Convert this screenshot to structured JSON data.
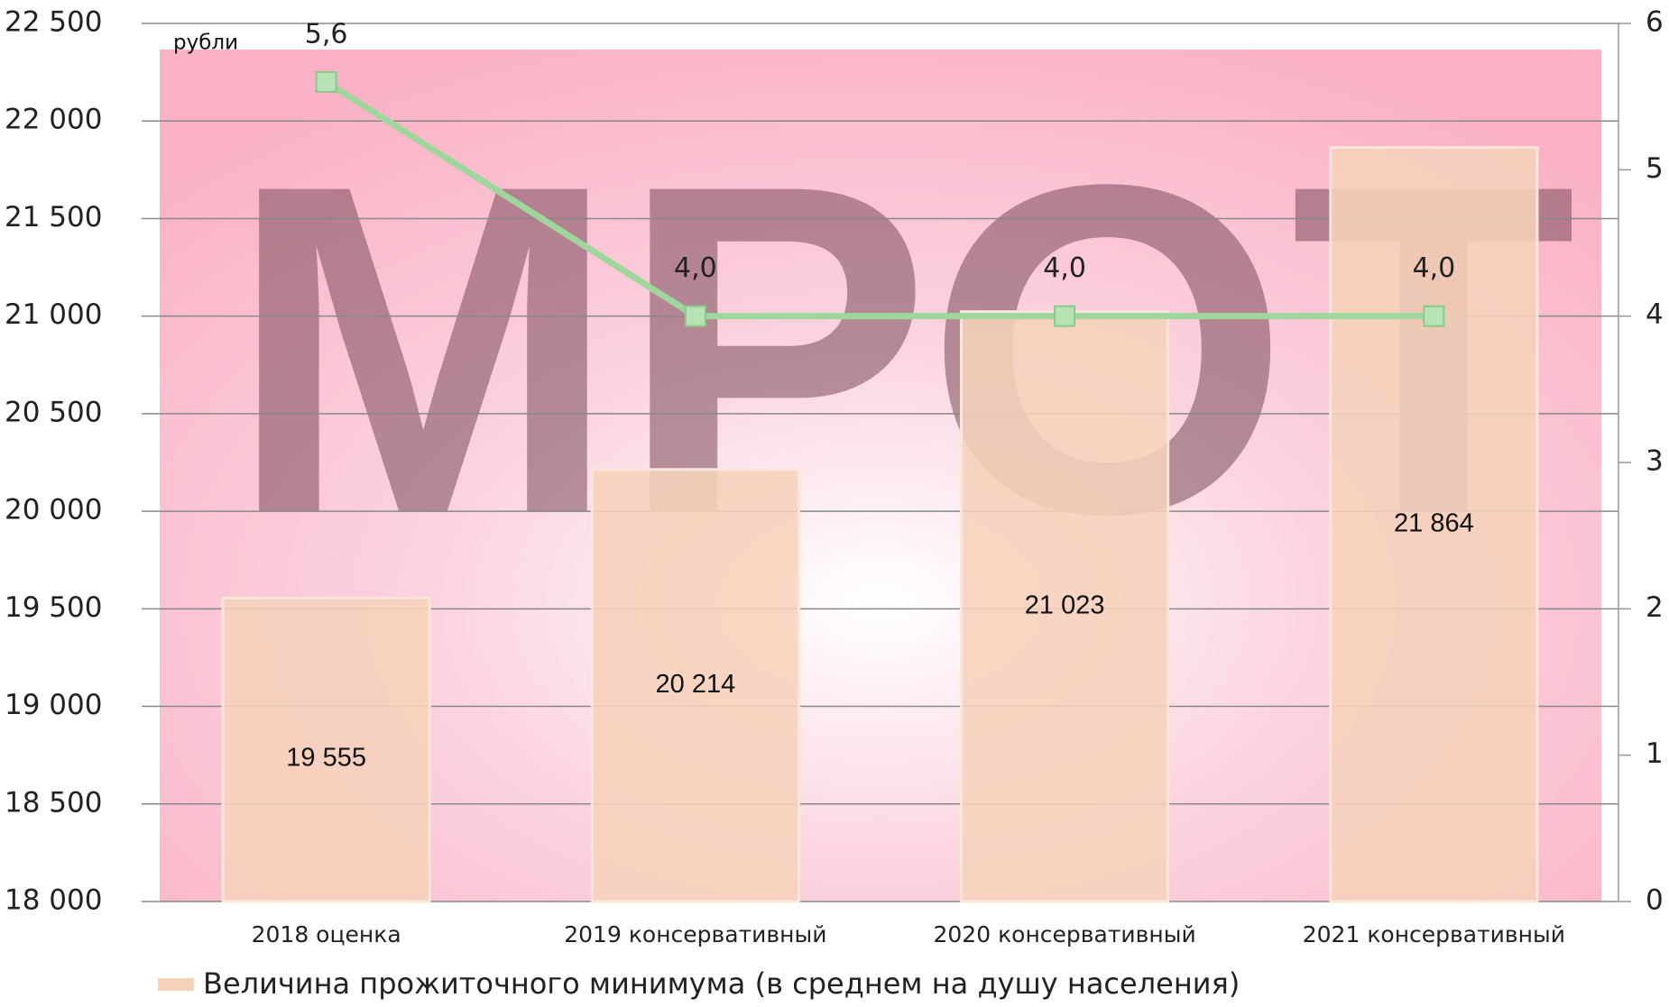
{
  "chart_data": {
    "type": "bar",
    "background_text": "МРОТ",
    "annotation": "рубли",
    "categories": [
      "2018 оценка",
      "2019 консервативный",
      "2020 консервативный",
      "2021 консервативный"
    ],
    "series": [
      {
        "name": "Величина прожиточного минимума (в среднем на душу населения)",
        "color": "#f6d2bb",
        "values": [
          19555,
          20214,
          21023,
          21864
        ],
        "value_labels": [
          "19 555",
          "20 214",
          "21 023",
          "21 864"
        ]
      },
      {
        "type": "line",
        "axis": "y2",
        "color": "#9ed69e",
        "values": [
          5.6,
          4.0,
          4.0,
          4.0
        ],
        "value_labels": [
          "5,6",
          "4,0",
          "4,0",
          "4,0"
        ]
      }
    ],
    "ylim": [
      18000,
      22500
    ],
    "yticks": [
      {
        "value": 18000,
        "label": "18 000"
      },
      {
        "value": 18500,
        "label": "18 500"
      },
      {
        "value": 19000,
        "label": "19 000"
      },
      {
        "value": 19500,
        "label": "19 500"
      },
      {
        "value": 20000,
        "label": "20 000"
      },
      {
        "value": 20500,
        "label": "20 500"
      },
      {
        "value": 21000,
        "label": "21 000"
      },
      {
        "value": 21500,
        "label": "21 500"
      },
      {
        "value": 22000,
        "label": "22 000"
      },
      {
        "value": 22500,
        "label": "22 500"
      }
    ],
    "y2lim": [
      0,
      6
    ],
    "y2ticks": [
      0,
      1,
      2,
      3,
      4,
      5,
      6
    ],
    "grid": true
  }
}
